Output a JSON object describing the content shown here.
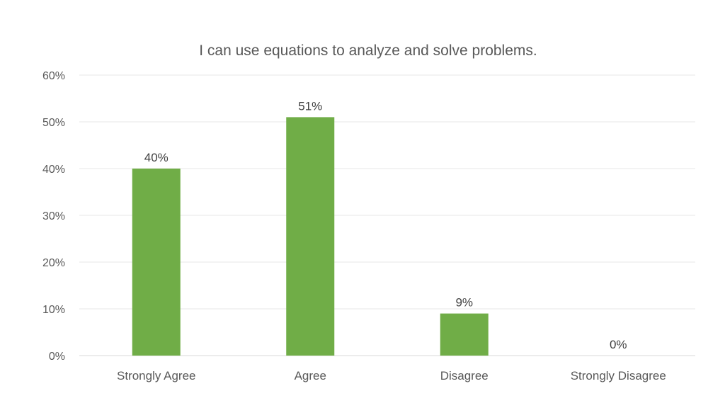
{
  "chart_data": {
    "type": "bar",
    "title": "I can use equations to analyze and solve problems.",
    "categories": [
      "Strongly Agree",
      "Agree",
      "Disagree",
      "Strongly Disagree"
    ],
    "values": [
      40,
      51,
      9,
      0
    ],
    "data_labels": [
      "40%",
      "51%",
      "9%",
      "0%"
    ],
    "y_ticks": [
      "0%",
      "10%",
      "20%",
      "30%",
      "40%",
      "50%",
      "60%"
    ],
    "ylim": [
      0,
      60
    ],
    "grid": true,
    "bar_color": "#70AD47"
  }
}
